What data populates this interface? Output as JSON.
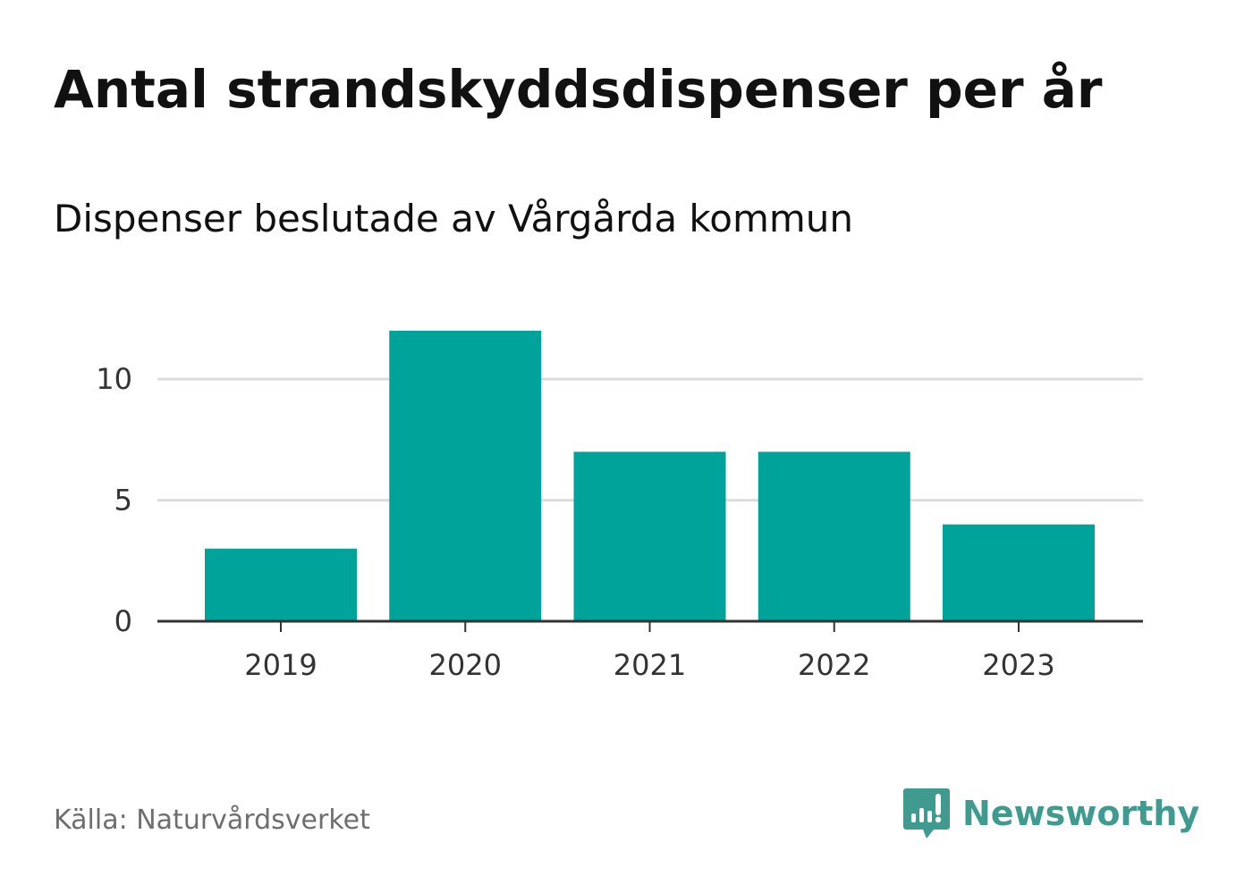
{
  "header": {
    "title": "Antal strandskyddsdispenser per år",
    "subtitle": "Dispenser beslutade av Vårgårda kommun"
  },
  "footer": {
    "source": "Källa: Naturvårdsverket",
    "brand": "Newsworthy",
    "brand_color": "#3f9a8f"
  },
  "chart_data": {
    "type": "bar",
    "title": "Antal strandskyddsdispenser per år",
    "subtitle": "Dispenser beslutade av Vårgårda kommun",
    "categories": [
      "2019",
      "2020",
      "2021",
      "2022",
      "2023"
    ],
    "values": [
      3,
      12,
      7,
      7,
      4
    ],
    "xlabel": "",
    "ylabel": "",
    "ylim": [
      0,
      12
    ],
    "yticks": [
      0,
      5,
      10
    ],
    "grid": true,
    "bar_color": "#00a39a",
    "grid_color": "#dddddd",
    "axis_color": "#333333"
  }
}
